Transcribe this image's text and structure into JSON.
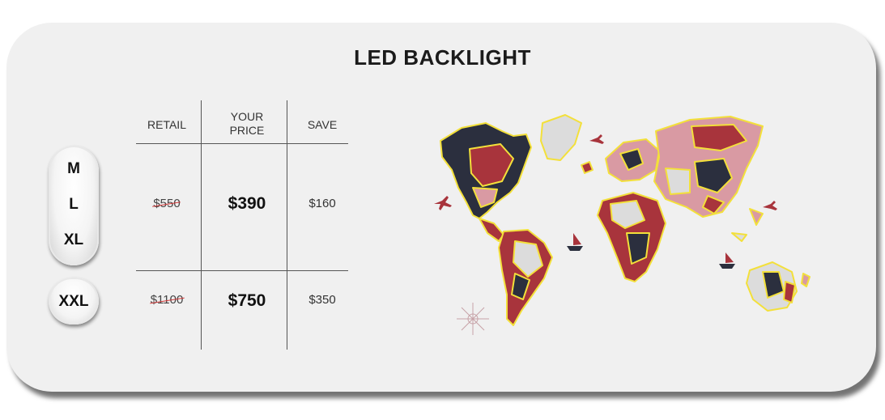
{
  "title": "LED BACKLIGHT",
  "sizes": {
    "group1": [
      "M",
      "L",
      "XL"
    ],
    "group2": "XXL"
  },
  "table": {
    "headers": {
      "retail": "RETAIL",
      "your_price_line1": "YOUR",
      "your_price_line2": "PRICE",
      "save": "SAVE"
    },
    "rows": [
      {
        "retail": "$550",
        "price": "$390",
        "save": "$160"
      },
      {
        "retail": "$1100",
        "price": "$750",
        "save": "$350"
      }
    ]
  },
  "map": {
    "description_icon": "world-map-image"
  },
  "colors": {
    "map_outline": "#f3e03a",
    "map_dark": "#2b2f3e",
    "map_red": "#a8343c",
    "map_pink": "#d99aa3",
    "map_light": "#dcdcdc"
  }
}
